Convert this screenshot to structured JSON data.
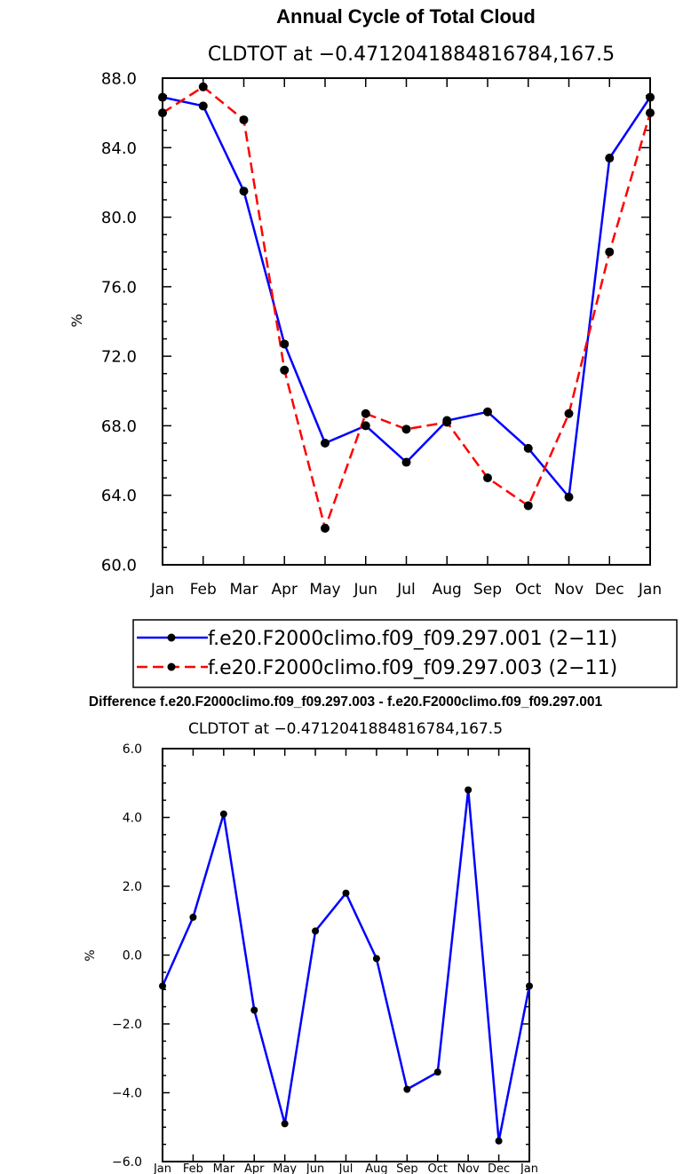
{
  "charts": [
    {
      "title": "Annual Cycle of Total Cloud",
      "subtitle": "CLDTOT at −0.4712041884816784,167.5",
      "ylabel": "%",
      "ylim": [
        60,
        88
      ],
      "ytick_values": [
        60,
        64,
        68,
        72,
        76,
        80,
        84,
        88
      ],
      "ytick_labels": [
        "60.0",
        "64.0",
        "68.0",
        "72.0",
        "76.0",
        "80.0",
        "84.0",
        "88.0"
      ],
      "minor_step": 1,
      "xtick_labels": [
        "Jan",
        "Feb",
        "Mar",
        "Apr",
        "May",
        "Jun",
        "Jul",
        "Aug",
        "Sep",
        "Oct",
        "Nov",
        "Dec",
        "Jan"
      ],
      "series": [
        {
          "name": "f.e20.F2000climo.f09_f09.297.001 (2−11)",
          "color": "#0000ff",
          "dash": "solid",
          "values": [
            86.9,
            86.4,
            81.5,
            72.7,
            67.0,
            68.0,
            65.9,
            68.3,
            68.8,
            66.7,
            63.9,
            83.4,
            86.9
          ]
        },
        {
          "name": "f.e20.F2000climo.f09_f09.297.003 (2−11)",
          "color": "#ff0000",
          "dash": "dashed",
          "values": [
            86.0,
            87.5,
            85.6,
            71.2,
            62.1,
            68.7,
            67.8,
            68.2,
            65.0,
            63.4,
            68.7,
            78.0,
            86.0
          ]
        }
      ]
    },
    {
      "title": "Difference f.e20.F2000climo.f09_f09.297.003 - f.e20.F2000climo.f09_f09.297.001",
      "subtitle": "CLDTOT at −0.4712041884816784,167.5",
      "ylabel": "%",
      "ylim": [
        -6,
        6
      ],
      "ytick_values": [
        -6,
        -4,
        -2,
        0,
        2,
        4,
        6
      ],
      "ytick_labels": [
        "−6.0",
        "−4.0",
        "−2.0",
        "0.0",
        "2.0",
        "4.0",
        "6.0"
      ],
      "minor_step": 0.5,
      "xtick_labels": [
        "Jan",
        "Feb",
        "Mar",
        "Apr",
        "May",
        "Jun",
        "Jul",
        "Aug",
        "Sep",
        "Oct",
        "Nov",
        "Dec",
        "Jan"
      ],
      "series": [
        {
          "color": "#0000ff",
          "dash": "solid",
          "values": [
            -0.9,
            1.1,
            4.1,
            -1.6,
            -4.9,
            0.7,
            1.8,
            -0.1,
            -3.9,
            -3.4,
            4.8,
            -5.4,
            -0.9
          ]
        }
      ]
    }
  ]
}
